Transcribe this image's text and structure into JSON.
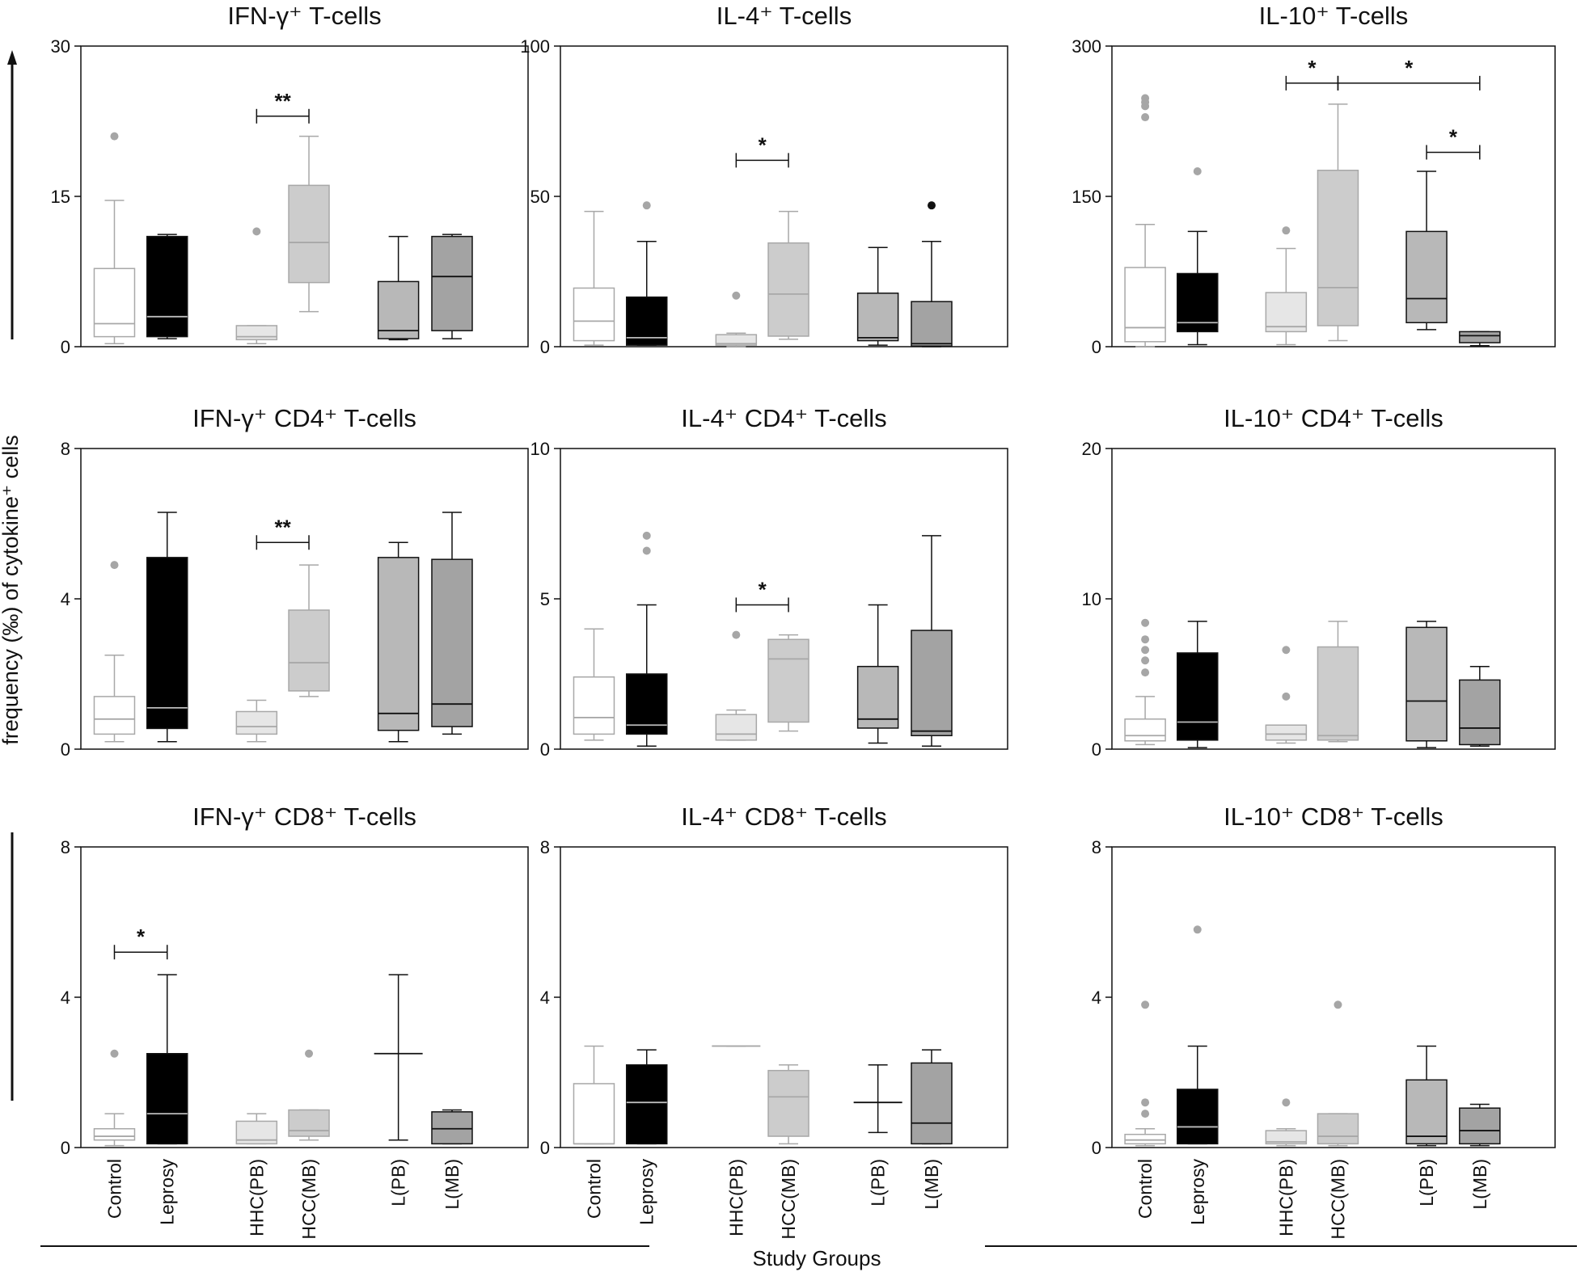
{
  "colors": {
    "Control": "#ffffff",
    "Leprosy": "#000000",
    "HHC(PB)": "#e6e6e6",
    "HCC(MB)": "#cccccc",
    "L(PB)": "#b8b8b8",
    "L(MB)": "#a3a3a3",
    "outlier": "#a6a6a6",
    "axis": "#111111"
  },
  "figure": {
    "ylabel": "frequency (‰) of cytokine⁺ cells",
    "xlabel": "Study Groups",
    "categories": [
      "Control",
      "Leprosy",
      "HHC(PB)",
      "HCC(MB)",
      "L(PB)",
      "L(MB)"
    ]
  },
  "chart_data": [
    {
      "type": "box",
      "title": "IFN-γ⁺ T-cells",
      "ylim": [
        0,
        30
      ],
      "yticks": [
        0,
        15,
        30
      ],
      "categories": [
        "Control",
        "Leprosy",
        "HHC(PB)",
        "HCC(MB)",
        "L(PB)",
        "L(MB)"
      ],
      "boxes": [
        {
          "group": "Control",
          "min": 0.3,
          "q1": 1.0,
          "median": 2.3,
          "q3": 7.8,
          "max": 14.6,
          "outliers": [
            21
          ]
        },
        {
          "group": "Leprosy",
          "min": 0.8,
          "q1": 1.0,
          "median": 3.0,
          "q3": 11.0,
          "max": 11.2,
          "outliers": []
        },
        {
          "group": "HHC(PB)",
          "min": 0.3,
          "q1": 0.7,
          "median": 1.0,
          "q3": 2.1,
          "max": 2.1,
          "outliers": [
            11.5
          ]
        },
        {
          "group": "HCC(MB)",
          "min": 3.5,
          "q1": 6.4,
          "median": 10.4,
          "q3": 16.1,
          "max": 21.0,
          "outliers": []
        },
        {
          "group": "L(PB)",
          "min": 0.7,
          "q1": 0.8,
          "median": 1.6,
          "q3": 6.5,
          "max": 11.0,
          "outliers": []
        },
        {
          "group": "L(MB)",
          "min": 0.8,
          "q1": 1.6,
          "median": 7.0,
          "q3": 11.0,
          "max": 11.2,
          "outliers": []
        }
      ],
      "significance": [
        {
          "from": "HHC(PB)",
          "to": "HCC(MB)",
          "label": "**",
          "y": 23
        }
      ]
    },
    {
      "type": "box",
      "title": "IL-4⁺ T-cells",
      "ylim": [
        0,
        100
      ],
      "yticks": [
        0,
        50,
        100
      ],
      "categories": [
        "Control",
        "Leprosy",
        "HHC(PB)",
        "HCC(MB)",
        "L(PB)",
        "L(MB)"
      ],
      "boxes": [
        {
          "group": "Control",
          "min": 0.5,
          "q1": 2.0,
          "median": 8.5,
          "q3": 19.5,
          "max": 45.0,
          "outliers": []
        },
        {
          "group": "Leprosy",
          "min": 0.5,
          "q1": 0.5,
          "median": 3.0,
          "q3": 16.5,
          "max": 35.0,
          "outliers": [
            47
          ]
        },
        {
          "group": "HHC(PB)",
          "min": 0.0,
          "q1": 0.5,
          "median": 1.0,
          "q3": 4.0,
          "max": 4.5,
          "outliers": [
            17
          ]
        },
        {
          "group": "HCC(MB)",
          "min": 2.5,
          "q1": 3.5,
          "median": 17.5,
          "q3": 34.5,
          "max": 45.0,
          "outliers": []
        },
        {
          "group": "L(PB)",
          "min": 0.5,
          "q1": 2.0,
          "median": 3.0,
          "q3": 17.8,
          "max": 33.0,
          "outliers": []
        },
        {
          "group": "L(MB)",
          "min": 0.0,
          "q1": 0.2,
          "median": 1.0,
          "q3": 15.0,
          "max": 35.0,
          "outliers": [
            47
          ]
        }
      ],
      "significance": [
        {
          "from": "HHC(PB)",
          "to": "HCC(MB)",
          "label": "*",
          "y": 62
        }
      ]
    },
    {
      "type": "box",
      "title": "IL-10⁺ T-cells",
      "ylim": [
        0,
        300
      ],
      "yticks": [
        0,
        150,
        300
      ],
      "categories": [
        "Control",
        "Leprosy",
        "HHC(PB)",
        "HCC(MB)",
        "L(PB)",
        "L(MB)"
      ],
      "boxes": [
        {
          "group": "Control",
          "min": 0,
          "q1": 5,
          "median": 19,
          "q3": 79,
          "max": 122,
          "outliers": [
            229,
            240,
            244,
            248
          ]
        },
        {
          "group": "Leprosy",
          "min": 2,
          "q1": 15,
          "median": 24,
          "q3": 73,
          "max": 115,
          "outliers": [
            175
          ]
        },
        {
          "group": "HHC(PB)",
          "min": 2,
          "q1": 15,
          "median": 20,
          "q3": 54,
          "max": 98,
          "outliers": [
            116
          ]
        },
        {
          "group": "HCC(MB)",
          "min": 6,
          "q1": 21,
          "median": 59,
          "q3": 176,
          "max": 242,
          "outliers": []
        },
        {
          "group": "L(PB)",
          "min": 17,
          "q1": 24,
          "median": 48,
          "q3": 115,
          "max": 175,
          "outliers": []
        },
        {
          "group": "L(MB)",
          "min": 1,
          "q1": 4,
          "median": 11,
          "q3": 15,
          "max": 15,
          "outliers": []
        }
      ],
      "significance": [
        {
          "from": "HHC(PB)",
          "to": "HCC(MB)",
          "label": "*",
          "y": 263
        },
        {
          "from": "HCC(MB)",
          "to": "L(MB)",
          "label": "*",
          "y": 263
        },
        {
          "from": "L(PB)",
          "to": "L(MB)",
          "label": "*",
          "y": 194
        }
      ]
    },
    {
      "type": "box",
      "title": "IFN-γ⁺ CD4⁺ T-cells",
      "ylim": [
        0,
        8
      ],
      "yticks": [
        0,
        4,
        8
      ],
      "categories": [
        "Control",
        "Leprosy",
        "HHC(PB)",
        "HCC(MB)",
        "L(PB)",
        "L(MB)"
      ],
      "boxes": [
        {
          "group": "Control",
          "min": 0.2,
          "q1": 0.4,
          "median": 0.8,
          "q3": 1.4,
          "max": 2.5,
          "outliers": [
            4.9
          ]
        },
        {
          "group": "Leprosy",
          "min": 0.2,
          "q1": 0.55,
          "median": 1.1,
          "q3": 5.1,
          "max": 6.3,
          "outliers": []
        },
        {
          "group": "HHC(PB)",
          "min": 0.2,
          "q1": 0.4,
          "median": 0.6,
          "q3": 1.0,
          "max": 1.3,
          "outliers": []
        },
        {
          "group": "HCC(MB)",
          "min": 1.4,
          "q1": 1.55,
          "median": 2.3,
          "q3": 3.7,
          "max": 4.9,
          "outliers": []
        },
        {
          "group": "L(PB)",
          "min": 0.2,
          "q1": 0.5,
          "median": 0.95,
          "q3": 5.1,
          "max": 5.5,
          "outliers": []
        },
        {
          "group": "L(MB)",
          "min": 0.4,
          "q1": 0.6,
          "median": 1.2,
          "q3": 5.05,
          "max": 6.3,
          "outliers": []
        }
      ],
      "significance": [
        {
          "from": "HHC(PB)",
          "to": "HCC(MB)",
          "label": "**",
          "y": 5.5
        }
      ]
    },
    {
      "type": "box",
      "title": "IL-4⁺ CD4⁺ T-cells",
      "ylim": [
        0,
        10
      ],
      "yticks": [
        0,
        5,
        10
      ],
      "categories": [
        "Control",
        "Leprosy",
        "HHC(PB)",
        "HCC(MB)",
        "L(PB)",
        "L(MB)"
      ],
      "boxes": [
        {
          "group": "Control",
          "min": 0.3,
          "q1": 0.5,
          "median": 1.05,
          "q3": 2.4,
          "max": 4.0,
          "outliers": []
        },
        {
          "group": "Leprosy",
          "min": 0.1,
          "q1": 0.5,
          "median": 0.8,
          "q3": 2.5,
          "max": 4.8,
          "outliers": [
            6.6,
            7.1
          ]
        },
        {
          "group": "HHC(PB)",
          "min": 0.3,
          "q1": 0.3,
          "median": 0.5,
          "q3": 1.15,
          "max": 1.3,
          "outliers": [
            3.8
          ]
        },
        {
          "group": "HCC(MB)",
          "min": 0.6,
          "q1": 0.9,
          "median": 3.0,
          "q3": 3.65,
          "max": 3.8,
          "outliers": []
        },
        {
          "group": "L(PB)",
          "min": 0.2,
          "q1": 0.7,
          "median": 1.0,
          "q3": 2.75,
          "max": 4.8,
          "outliers": []
        },
        {
          "group": "L(MB)",
          "min": 0.1,
          "q1": 0.45,
          "median": 0.6,
          "q3": 3.95,
          "max": 7.1,
          "outliers": []
        }
      ],
      "significance": [
        {
          "from": "HHC(PB)",
          "to": "HCC(MB)",
          "label": "*",
          "y": 4.8
        }
      ]
    },
    {
      "type": "box",
      "title": "IL-10⁺ CD4⁺ T-cells",
      "ylim": [
        0,
        20
      ],
      "yticks": [
        0,
        10,
        20
      ],
      "categories": [
        "Control",
        "Leprosy",
        "HHC(PB)",
        "HCC(MB)",
        "L(PB)",
        "L(MB)"
      ],
      "boxes": [
        {
          "group": "Control",
          "min": 0.3,
          "q1": 0.55,
          "median": 0.9,
          "q3": 2.0,
          "max": 3.5,
          "outliers": [
            5.1,
            5.9,
            6.6,
            7.3,
            8.4
          ]
        },
        {
          "group": "Leprosy",
          "min": 0.1,
          "q1": 0.6,
          "median": 1.8,
          "q3": 6.4,
          "max": 8.5,
          "outliers": []
        },
        {
          "group": "HHC(PB)",
          "min": 0.4,
          "q1": 0.6,
          "median": 1.0,
          "q3": 1.6,
          "max": 1.6,
          "outliers": [
            3.5,
            6.6
          ]
        },
        {
          "group": "HCC(MB)",
          "min": 0.5,
          "q1": 0.6,
          "median": 0.9,
          "q3": 6.8,
          "max": 8.5,
          "outliers": []
        },
        {
          "group": "L(PB)",
          "min": 0.1,
          "q1": 0.55,
          "median": 3.2,
          "q3": 8.1,
          "max": 8.5,
          "outliers": []
        },
        {
          "group": "L(MB)",
          "min": 0.2,
          "q1": 0.3,
          "median": 1.4,
          "q3": 4.6,
          "max": 5.5,
          "outliers": []
        }
      ],
      "significance": []
    },
    {
      "type": "box",
      "title": "IFN-γ⁺ CD8⁺ T-cells",
      "ylim": [
        0,
        8
      ],
      "yticks": [
        0,
        4,
        8
      ],
      "categories": [
        "Control",
        "Leprosy",
        "HHC(PB)",
        "HCC(MB)",
        "L(PB)",
        "L(MB)"
      ],
      "boxes": [
        {
          "group": "Control",
          "min": 0.05,
          "q1": 0.2,
          "median": 0.3,
          "q3": 0.5,
          "max": 0.9,
          "outliers": [
            2.5
          ]
        },
        {
          "group": "Leprosy",
          "min": 0.1,
          "q1": 0.1,
          "median": 0.9,
          "q3": 2.5,
          "max": 4.6,
          "outliers": []
        },
        {
          "group": "HHC(PB)",
          "min": 0.1,
          "q1": 0.1,
          "median": 0.2,
          "q3": 0.7,
          "max": 0.9,
          "outliers": []
        },
        {
          "group": "HCC(MB)",
          "min": 0.2,
          "q1": 0.3,
          "median": 0.45,
          "q3": 1.0,
          "max": 1.0,
          "outliers": [
            2.5
          ]
        },
        {
          "group": "L(PB)",
          "min": 0.2,
          "q1": 2.5,
          "median": 2.5,
          "q3": 2.5,
          "max": 4.6,
          "outliers": []
        },
        {
          "group": "L(MB)",
          "min": 0.1,
          "q1": 0.1,
          "median": 0.5,
          "q3": 0.95,
          "max": 1.0,
          "outliers": []
        }
      ],
      "significance": [
        {
          "from": "Control",
          "to": "Leprosy",
          "label": "*",
          "y": 5.2
        }
      ]
    },
    {
      "type": "box",
      "title": "IL-4⁺ CD8⁺ T-cells",
      "ylim": [
        0,
        8
      ],
      "yticks": [
        0,
        4,
        8
      ],
      "categories": [
        "Control",
        "Leprosy",
        "HHC(PB)",
        "HCC(MB)",
        "L(PB)",
        "L(MB)"
      ],
      "boxes": [
        {
          "group": "Control",
          "min": 0.1,
          "q1": 0.1,
          "median": 0.1,
          "q3": 1.7,
          "max": 2.7,
          "outliers": []
        },
        {
          "group": "Leprosy",
          "min": 0.1,
          "q1": 0.1,
          "median": 1.2,
          "q3": 2.2,
          "max": 2.6,
          "outliers": []
        },
        {
          "group": "HHC(PB)",
          "min": 2.7,
          "q1": 2.7,
          "median": 2.7,
          "q3": 2.7,
          "max": 2.7,
          "outliers": []
        },
        {
          "group": "HCC(MB)",
          "min": 0.1,
          "q1": 0.3,
          "median": 1.35,
          "q3": 2.05,
          "max": 2.2,
          "outliers": []
        },
        {
          "group": "L(PB)",
          "min": 0.4,
          "q1": 1.2,
          "median": 1.2,
          "q3": 1.2,
          "max": 2.2,
          "outliers": []
        },
        {
          "group": "L(MB)",
          "min": 0.1,
          "q1": 0.1,
          "median": 0.65,
          "q3": 2.25,
          "max": 2.6,
          "outliers": []
        }
      ],
      "significance": []
    },
    {
      "type": "box",
      "title": "IL-10⁺ CD8⁺ T-cells",
      "ylim": [
        0,
        8
      ],
      "yticks": [
        0,
        4,
        8
      ],
      "categories": [
        "Control",
        "Leprosy",
        "HHC(PB)",
        "HCC(MB)",
        "L(PB)",
        "L(MB)"
      ],
      "boxes": [
        {
          "group": "Control",
          "min": 0.05,
          "q1": 0.1,
          "median": 0.2,
          "q3": 0.35,
          "max": 0.5,
          "outliers": [
            0.9,
            1.2,
            3.8
          ]
        },
        {
          "group": "Leprosy",
          "min": 0.1,
          "q1": 0.1,
          "median": 0.55,
          "q3": 1.55,
          "max": 2.7,
          "outliers": [
            5.8
          ]
        },
        {
          "group": "HHC(PB)",
          "min": 0.05,
          "q1": 0.1,
          "median": 0.15,
          "q3": 0.45,
          "max": 0.5,
          "outliers": [
            1.2
          ]
        },
        {
          "group": "HCC(MB)",
          "min": 0.05,
          "q1": 0.1,
          "median": 0.3,
          "q3": 0.9,
          "max": 0.9,
          "outliers": [
            3.8
          ]
        },
        {
          "group": "L(PB)",
          "min": 0.05,
          "q1": 0.1,
          "median": 0.3,
          "q3": 1.8,
          "max": 2.7,
          "outliers": []
        },
        {
          "group": "L(MB)",
          "min": 0.05,
          "q1": 0.1,
          "median": 0.45,
          "q3": 1.05,
          "max": 1.15,
          "outliers": []
        }
      ],
      "significance": []
    }
  ]
}
